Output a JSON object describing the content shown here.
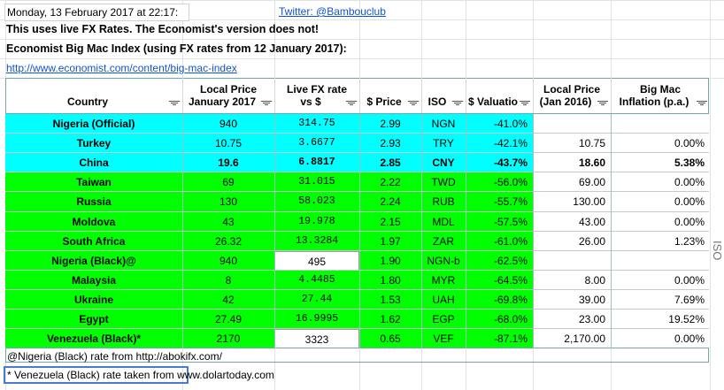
{
  "header_lines": {
    "timestamp": "Monday, 13 February 2017 at 22:17:",
    "twitter": "Twitter: @Bambouclub",
    "live_note": "This uses live FX Rates. The Economist's version does not!",
    "index_title": "Economist Big Mac Index (using FX rates from 12 January 2017):",
    "url": "http://www.economist.com/content/big-mac-index"
  },
  "columns": [
    {
      "line1": "",
      "line2": "Country"
    },
    {
      "line1": "Local Price",
      "line2": "January 2017"
    },
    {
      "line1": "Live FX rate",
      "line2": "vs $"
    },
    {
      "line1": "",
      "line2": "$ Price"
    },
    {
      "line1": "",
      "line2": "ISO"
    },
    {
      "line1": "",
      "line2": "$ Valuatio"
    },
    {
      "line1": "Local Price",
      "line2": "(Jan 2016)"
    },
    {
      "line1": "Big Mac",
      "line2": "Inflation (p.a.)"
    }
  ],
  "colors": {
    "cyan": "#00ffff",
    "green": "#00ff00",
    "white": "#ffffff",
    "link": "#1155cc"
  },
  "rows": [
    {
      "country": "Nigeria (Official)",
      "local": "940",
      "fx": "314.75",
      "usd": "2.99",
      "iso": "NGN",
      "valuation": "-41.0%",
      "local2016": "",
      "inflation": "",
      "color": "cyan",
      "bold": false,
      "fx_white": false
    },
    {
      "country": "Turkey",
      "local": "10.75",
      "fx": "3.6677",
      "usd": "2.93",
      "iso": "TRY",
      "valuation": "-42.1%",
      "local2016": "10.75",
      "inflation": "0.00%",
      "color": "cyan",
      "bold": false,
      "fx_white": false
    },
    {
      "country": "China",
      "local": "19.6",
      "fx": "6.8817",
      "usd": "2.85",
      "iso": "CNY",
      "valuation": "-43.7%",
      "local2016": "18.60",
      "inflation": "5.38%",
      "color": "cyan",
      "bold": true,
      "fx_white": false
    },
    {
      "country": "Taiwan",
      "local": "69",
      "fx": "31.015",
      "usd": "2.22",
      "iso": "TWD",
      "valuation": "-56.0%",
      "local2016": "69.00",
      "inflation": "0.00%",
      "color": "green",
      "bold": false,
      "fx_white": false
    },
    {
      "country": "Russia",
      "local": "130",
      "fx": "58.023",
      "usd": "2.24",
      "iso": "RUB",
      "valuation": "-55.7%",
      "local2016": "130.00",
      "inflation": "0.00%",
      "color": "green",
      "bold": false,
      "fx_white": false
    },
    {
      "country": "Moldova",
      "local": "43",
      "fx": "19.978",
      "usd": "2.15",
      "iso": "MDL",
      "valuation": "-57.5%",
      "local2016": "43.00",
      "inflation": "0.00%",
      "color": "green",
      "bold": false,
      "fx_white": false
    },
    {
      "country": "South Africa",
      "local": "26.32",
      "fx": "13.3284",
      "usd": "1.97",
      "iso": "ZAR",
      "valuation": "-61.0%",
      "local2016": "26.00",
      "inflation": "1.23%",
      "color": "green",
      "bold": false,
      "fx_white": false
    },
    {
      "country": "Nigeria (Black)@",
      "local": "940",
      "fx": "495",
      "usd": "1.90",
      "iso": "NGN-b",
      "valuation": "-62.5%",
      "local2016": "",
      "inflation": "",
      "color": "green",
      "bold": false,
      "fx_white": true
    },
    {
      "country": "Malaysia",
      "local": "8",
      "fx": "4.4485",
      "usd": "1.80",
      "iso": "MYR",
      "valuation": "-64.5%",
      "local2016": "8.00",
      "inflation": "0.00%",
      "color": "green",
      "bold": false,
      "fx_white": false
    },
    {
      "country": "Ukraine",
      "local": "42",
      "fx": "27.44",
      "usd": "1.53",
      "iso": "UAH",
      "valuation": "-69.8%",
      "local2016": "39.00",
      "inflation": "7.69%",
      "color": "green",
      "bold": false,
      "fx_white": false
    },
    {
      "country": "Egypt",
      "local": "27.49",
      "fx": "16.9995",
      "usd": "1.62",
      "iso": "EGP",
      "valuation": "-68.0%",
      "local2016": "23.00",
      "inflation": "19.52%",
      "color": "green",
      "bold": false,
      "fx_white": false
    },
    {
      "country": "Venezuela (Black)*",
      "local": "2170",
      "fx": "3323",
      "usd": "0.65",
      "iso": "VEF",
      "valuation": "-87.1%",
      "local2016": "2,170.00",
      "inflation": "0.00%",
      "color": "green",
      "bold": false,
      "fx_white": true
    }
  ],
  "notes": {
    "nigeria": "@Nigeria (Black) rate from  http://abokifx.com/",
    "venezuela": "* Venezuela (Black) rate taken from www.dolartoday.com"
  },
  "side_label": "ISO"
}
